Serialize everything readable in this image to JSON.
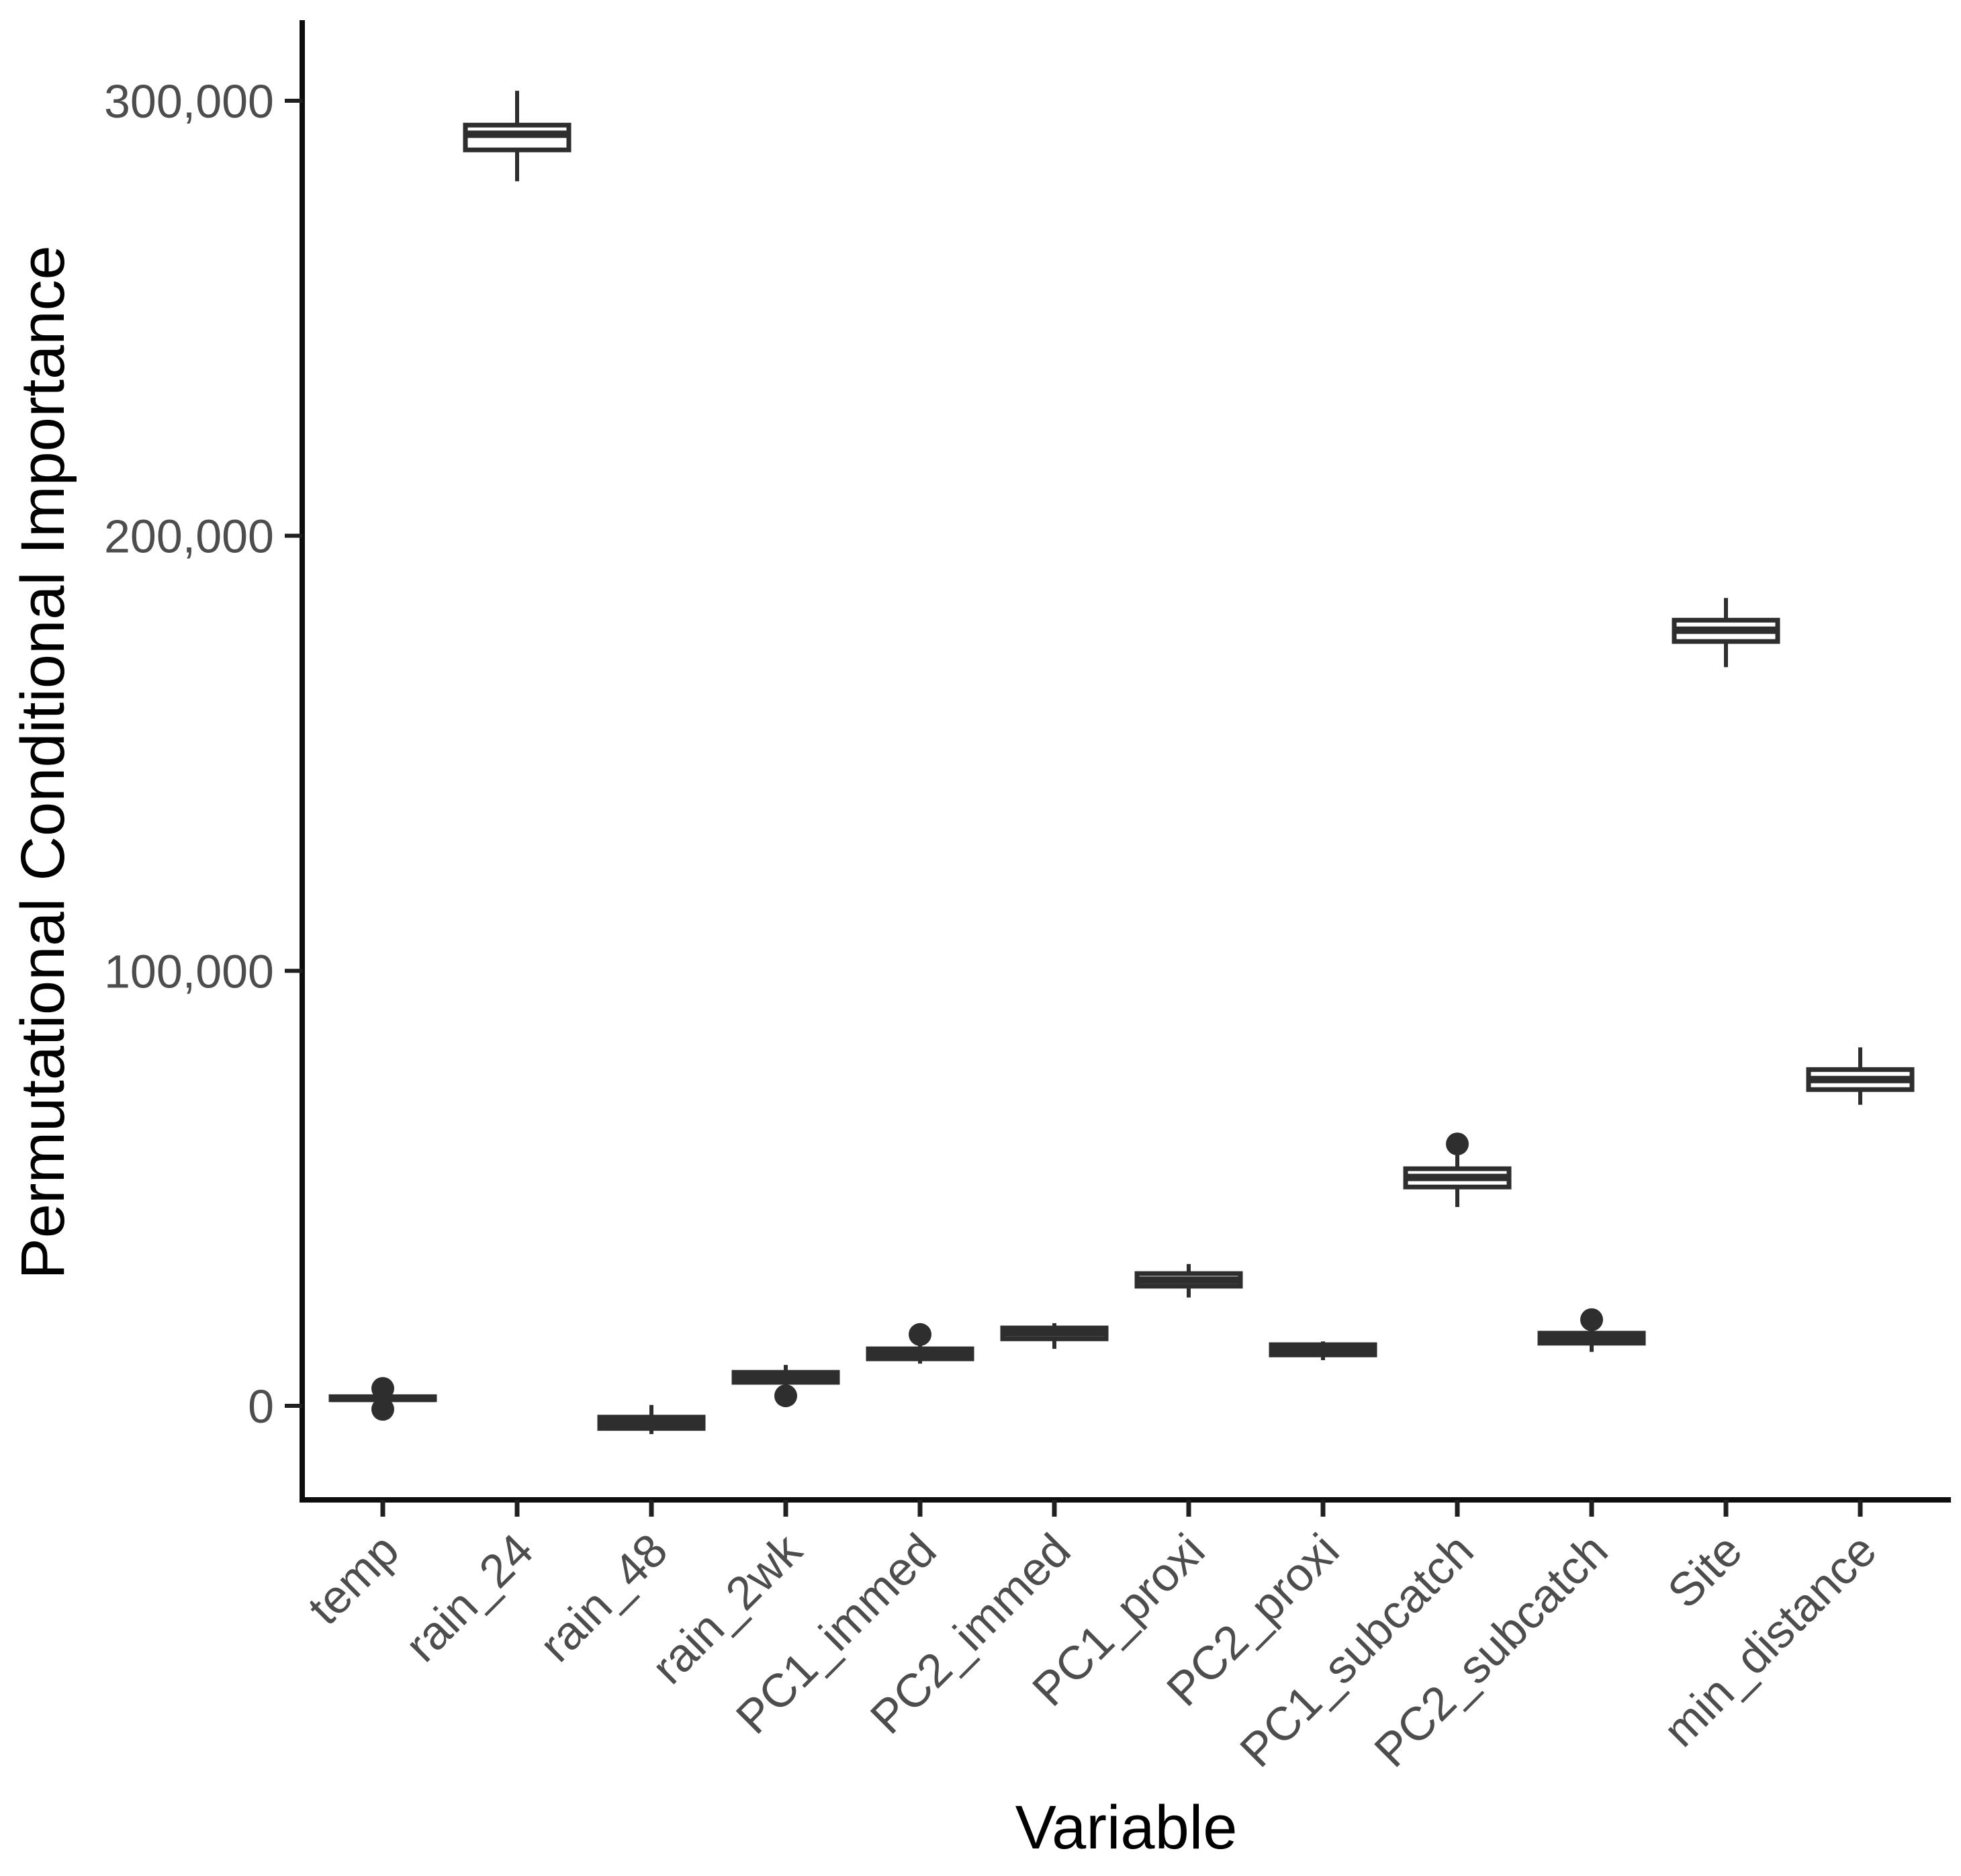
{
  "page": {
    "background": "#ffffff"
  },
  "chart_data": {
    "type": "boxplot",
    "title": "",
    "xlabel": "Variable",
    "ylabel": "Permutational Conditional Importance",
    "grid": "off",
    "legend": "none",
    "panel_style": "classic (left and bottom axis lines only)",
    "y_axis": {
      "range": [
        -22000,
        318000
      ],
      "ticks": [
        {
          "value": 0,
          "label": "0"
        },
        {
          "value": 100000,
          "label": "100,000"
        },
        {
          "value": 200000,
          "label": "200,000"
        },
        {
          "value": 300000,
          "label": "300,000"
        }
      ]
    },
    "categories": [
      "temp",
      "rain_24",
      "rain_48",
      "rain_2wk",
      "PC1_immed",
      "PC2_immed",
      "PC1_proxi",
      "PC2_proxi",
      "PC1_subcatch",
      "PC2_subcatch",
      "Site",
      "min_distance"
    ],
    "boxes": [
      {
        "name": "temp",
        "whisker_low": 1000,
        "q1": 1400,
        "median": 1700,
        "q3": 2100,
        "whisker_high": 2600,
        "outliers": [
          4000,
          -800
        ]
      },
      {
        "name": "rain_24",
        "whisker_low": 281500,
        "q1": 288700,
        "median": 292300,
        "q3": 294400,
        "whisker_high": 302300,
        "outliers": []
      },
      {
        "name": "rain_48",
        "whisker_low": -6500,
        "q1": -5200,
        "median": -3900,
        "q3": -2600,
        "whisker_high": 200,
        "outliers": []
      },
      {
        "name": "rain_2wk",
        "whisker_low": 4800,
        "q1": 5400,
        "median": 6600,
        "q3": 7700,
        "whisker_high": 9400,
        "outliers": [
          2300
        ]
      },
      {
        "name": "PC1_immed",
        "whisker_low": 9700,
        "q1": 10800,
        "median": 12000,
        "q3": 13100,
        "whisker_high": 13900,
        "outliers": [
          16400
        ]
      },
      {
        "name": "PC2_immed",
        "whisker_low": 13100,
        "q1": 15400,
        "median": 16800,
        "q3": 17900,
        "whisker_high": 19000,
        "outliers": []
      },
      {
        "name": "PC1_proxi",
        "whisker_low": 24900,
        "q1": 27500,
        "median": 28900,
        "q3": 30400,
        "whisker_high": 32600,
        "outliers": []
      },
      {
        "name": "PC2_proxi",
        "whisker_low": 10500,
        "q1": 11700,
        "median": 13000,
        "q3": 14050,
        "whisker_high": 14800,
        "outliers": []
      },
      {
        "name": "PC1_subcatch",
        "whisker_low": 45700,
        "q1": 50300,
        "median": 52500,
        "q3": 54500,
        "whisker_high": 57600,
        "outliers": [
          60200
        ]
      },
      {
        "name": "PC2_subcatch",
        "whisker_low": 12400,
        "q1": 14400,
        "median": 15600,
        "q3": 16700,
        "whisker_high": 17500,
        "outliers": [
          19800
        ]
      },
      {
        "name": "Site",
        "whisker_low": 169800,
        "q1": 175700,
        "median": 178300,
        "q3": 180600,
        "whisker_high": 185700,
        "outliers": []
      },
      {
        "name": "min_distance",
        "whisker_low": 69200,
        "q1": 72700,
        "median": 75000,
        "q3": 77300,
        "whisker_high": 82400,
        "outliers": []
      }
    ],
    "colors": {
      "box_stroke": "#2e2e2e",
      "box_fill": "#ffffff",
      "median": "#2e2e2e",
      "outlier": "#2e2e2e",
      "axis_line": "#0d0d0d",
      "tick_mark": "#1f1f1f",
      "tick_label": "#4d4d4d",
      "axis_title": "#000000"
    }
  }
}
